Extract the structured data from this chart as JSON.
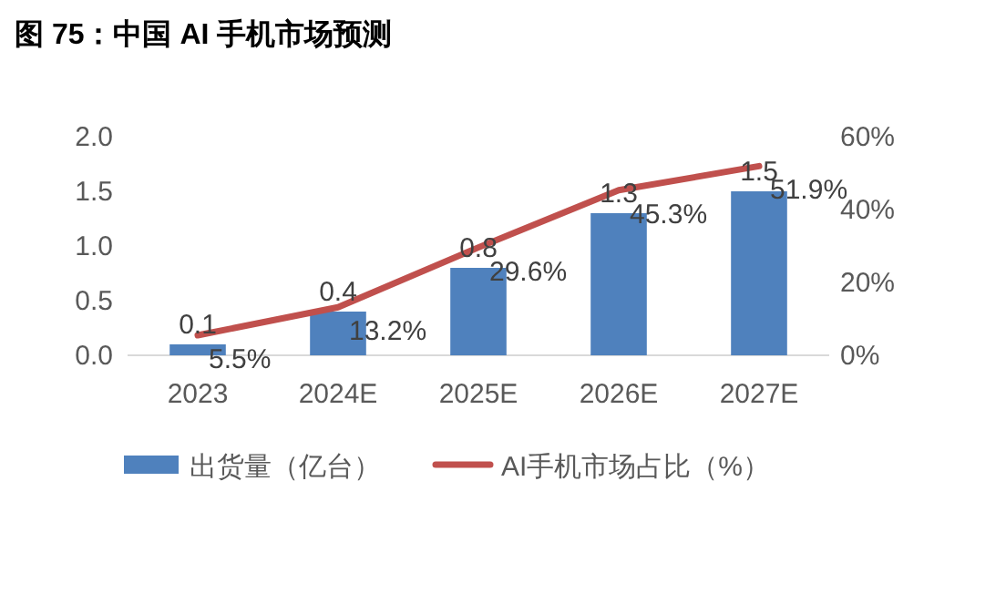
{
  "chart_data": {
    "type": "bar",
    "title": "图 75：中国 AI 手机市场预测",
    "categories": [
      "2023",
      "2024E",
      "2025E",
      "2026E",
      "2027E"
    ],
    "series": [
      {
        "name": "出货量（亿台）",
        "color": "#4f81bd",
        "values": [
          0.1,
          0.4,
          0.8,
          1.3,
          1.5
        ]
      },
      {
        "name": "AI手机市场占比（%）",
        "type": "line",
        "axis": "y2",
        "color": "#c0504d",
        "values": [
          5.5,
          13.2,
          29.6,
          45.3,
          51.9
        ],
        "value_labels": [
          "5.5%",
          "13.2%",
          "29.6%",
          "45.3%",
          "51.9%"
        ]
      }
    ],
    "ylim": [
      0,
      2.0
    ],
    "yticks": [
      {
        "value": 0,
        "label": "0.0"
      },
      {
        "value": 0.5,
        "label": "0.5"
      },
      {
        "value": 1,
        "label": "1.0"
      },
      {
        "value": 1.5,
        "label": "1.5"
      },
      {
        "value": 2,
        "label": "2.0"
      }
    ],
    "y2lim": [
      0,
      60
    ],
    "y2ticks": [
      {
        "value": 0,
        "label": "0%"
      },
      {
        "value": 20,
        "label": "20%"
      },
      {
        "value": 40,
        "label": "40%"
      },
      {
        "value": 60,
        "label": "60%"
      }
    ],
    "data_labels": true,
    "legend": "bottom",
    "grid": false
  }
}
